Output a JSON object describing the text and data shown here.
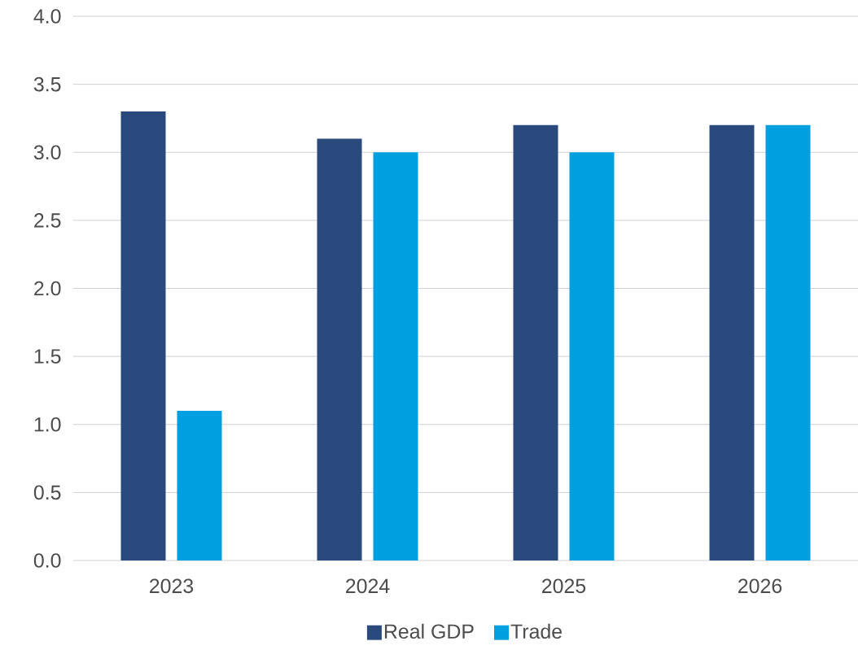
{
  "chart_data": {
    "type": "bar",
    "categories": [
      "2023",
      "2024",
      "2025",
      "2026"
    ],
    "series": [
      {
        "name": "Real GDP",
        "color": "#2a4a7d",
        "values": [
          3.3,
          3.1,
          3.2,
          3.2
        ]
      },
      {
        "name": "Trade",
        "color": "#00a0e0",
        "values": [
          1.1,
          3.0,
          3.0,
          3.2
        ]
      }
    ],
    "ylim": [
      0,
      4
    ],
    "yticks": [
      {
        "value": 0,
        "label": "0.0"
      },
      {
        "value": 0.5,
        "label": "0.5"
      },
      {
        "value": 1,
        "label": "1.0"
      },
      {
        "value": 1.5,
        "label": "1.5"
      },
      {
        "value": 2,
        "label": "2.0"
      },
      {
        "value": 2.5,
        "label": "2.5"
      },
      {
        "value": 3,
        "label": "3.0"
      },
      {
        "value": 3.5,
        "label": "3.5"
      },
      {
        "value": 4,
        "label": "4.0"
      }
    ],
    "grid": "y",
    "legend": "bottom"
  }
}
